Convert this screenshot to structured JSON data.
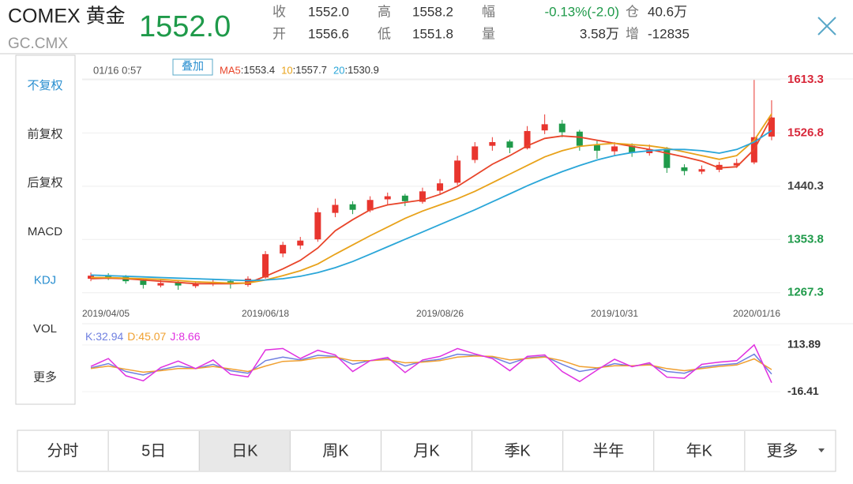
{
  "header": {
    "name": "COMEX 黄金",
    "code": "GC.CMX",
    "price": "1552.0",
    "stats": [
      [
        "收",
        "1552.0",
        "高",
        "1558.2",
        "幅",
        "-0.13%(-2.0)",
        "仓",
        "40.6万"
      ],
      [
        "开",
        "1556.6",
        "低",
        "1551.8",
        "量",
        "3.58万",
        "增",
        "-12835"
      ]
    ]
  },
  "side_menu": [
    "不复权",
    "前复权",
    "后复权",
    "MACD",
    "KDJ",
    "VOL",
    "更多"
  ],
  "tabs": [
    "分时",
    "5日",
    "日K",
    "周K",
    "月K",
    "季K",
    "半年",
    "年K",
    "更多"
  ],
  "chart_data": [
    {
      "type": "candlestick",
      "time_label": "01/16 0:57",
      "overlay_button": "叠加",
      "categories": [
        "2019/04/05",
        null,
        null,
        null,
        null,
        null,
        null,
        null,
        null,
        null,
        "2019/06/18",
        null,
        null,
        null,
        null,
        null,
        null,
        null,
        null,
        null,
        "2019/08/26",
        null,
        null,
        null,
        null,
        null,
        null,
        null,
        null,
        null,
        "2019/10/31",
        null,
        null,
        null,
        null,
        null,
        null,
        null,
        null,
        "2020/01/16"
      ],
      "open": [
        1290,
        1296,
        1293,
        1287,
        1279,
        1284,
        1278,
        1281,
        1286,
        1280,
        1292,
        1331,
        1344,
        1354,
        1397,
        1411,
        1401,
        1419,
        1425,
        1415,
        1433,
        1446,
        1483,
        1506,
        1513,
        1502,
        1531,
        1542,
        1529,
        1507,
        1497,
        1506,
        1494,
        1501,
        1471,
        1464,
        1467,
        1474,
        1479,
        1521
      ],
      "high": [
        1300,
        1299,
        1296,
        1290,
        1288,
        1287,
        1286,
        1290,
        1289,
        1294,
        1335,
        1350,
        1358,
        1405,
        1420,
        1416,
        1424,
        1430,
        1428,
        1438,
        1452,
        1490,
        1512,
        1520,
        1516,
        1538,
        1557,
        1548,
        1532,
        1515,
        1512,
        1510,
        1508,
        1504,
        1476,
        1474,
        1480,
        1485,
        1613,
        1580
      ],
      "low": [
        1286,
        1288,
        1282,
        1274,
        1276,
        1272,
        1275,
        1278,
        1274,
        1277,
        1290,
        1325,
        1338,
        1350,
        1390,
        1395,
        1398,
        1410,
        1408,
        1412,
        1428,
        1442,
        1478,
        1498,
        1494,
        1500,
        1525,
        1520,
        1498,
        1485,
        1490,
        1488,
        1490,
        1462,
        1458,
        1460,
        1463,
        1470,
        1476,
        1515
      ],
      "close": [
        1295,
        1292,
        1286,
        1280,
        1283,
        1279,
        1282,
        1285,
        1281,
        1290,
        1330,
        1345,
        1352,
        1398,
        1410,
        1402,
        1418,
        1424,
        1416,
        1432,
        1445,
        1482,
        1505,
        1512,
        1503,
        1530,
        1541,
        1528,
        1506,
        1498,
        1505,
        1495,
        1500,
        1470,
        1465,
        1468,
        1475,
        1478,
        1520,
        1552
      ],
      "up_color": "#e8352e",
      "down_color": "#1f9a4a",
      "series": [
        {
          "name": "MA5",
          "color": "#e8452a",
          "value_label": "1553.4",
          "values": [
            1290,
            1291,
            1290,
            1288,
            1286,
            1284,
            1282,
            1282,
            1282,
            1283,
            1294,
            1306,
            1320,
            1340,
            1368,
            1386,
            1402,
            1410,
            1414,
            1418,
            1427,
            1440,
            1458,
            1476,
            1490,
            1506,
            1518,
            1522,
            1520,
            1515,
            1510,
            1505,
            1500,
            1494,
            1488,
            1481,
            1470,
            1472,
            1500,
            1553
          ]
        },
        {
          "name": "10",
          "color": "#e8a21a",
          "value_label": "1557.7",
          "values": [
            1292,
            1292,
            1291,
            1290,
            1289,
            1287,
            1285,
            1284,
            1283,
            1283,
            1288,
            1295,
            1303,
            1314,
            1330,
            1345,
            1360,
            1374,
            1388,
            1400,
            1410,
            1420,
            1432,
            1446,
            1460,
            1474,
            1488,
            1498,
            1505,
            1508,
            1510,
            1508,
            1506,
            1502,
            1496,
            1490,
            1484,
            1490,
            1515,
            1558
          ]
        },
        {
          "name": "20",
          "color": "#2aa6d8",
          "value_label": "1530.9",
          "values": [
            1296,
            1295,
            1294,
            1293,
            1292,
            1291,
            1290,
            1289,
            1288,
            1287,
            1288,
            1290,
            1294,
            1300,
            1308,
            1318,
            1330,
            1342,
            1354,
            1366,
            1378,
            1390,
            1402,
            1415,
            1428,
            1441,
            1453,
            1464,
            1474,
            1483,
            1490,
            1495,
            1498,
            1500,
            1500,
            1498,
            1494,
            1500,
            1512,
            1531
          ]
        }
      ],
      "ylim": [
        1249,
        1621
      ],
      "yticks": [
        1613.3,
        1526.8,
        1440.3,
        1353.8,
        1267.3
      ],
      "ytick_colors": [
        "#d8283a",
        "#d8283a",
        "#444444",
        "#1f9a4a",
        "#1f9a4a"
      ],
      "grid": true
    },
    {
      "type": "line",
      "ylim": [
        -47,
        162
      ],
      "yticks": [
        113.89,
        -16.41
      ],
      "series": [
        {
          "name": "K",
          "color": "#6f7fe0",
          "value_label": "32.94",
          "values": [
            50,
            62,
            40,
            30,
            45,
            55,
            48,
            60,
            42,
            35,
            70,
            80,
            72,
            85,
            82,
            60,
            70,
            75,
            55,
            68,
            74,
            88,
            85,
            80,
            62,
            78,
            82,
            60,
            40,
            48,
            62,
            55,
            60,
            40,
            35,
            52,
            58,
            62,
            88,
            32.94
          ]
        },
        {
          "name": "D",
          "color": "#f0a030",
          "value_label": "45.07",
          "values": [
            48,
            55,
            46,
            38,
            42,
            48,
            48,
            54,
            47,
            40,
            55,
            68,
            70,
            78,
            80,
            70,
            70,
            73,
            64,
            66,
            70,
            80,
            83,
            82,
            72,
            76,
            80,
            70,
            54,
            50,
            56,
            56,
            58,
            48,
            42,
            48,
            54,
            58,
            75,
            45.07
          ]
        },
        {
          "name": "J",
          "color": "#e030e0",
          "value_label": "8.66",
          "values": [
            54,
            76,
            28,
            14,
            51,
            69,
            48,
            72,
            32,
            25,
            100,
            104,
            76,
            99,
            86,
            40,
            70,
            79,
            37,
            72,
            82,
            104,
            89,
            76,
            42,
            82,
            86,
            40,
            12,
            44,
            74,
            53,
            64,
            24,
            21,
            60,
            66,
            70,
            114,
            8.66
          ]
        }
      ]
    }
  ]
}
